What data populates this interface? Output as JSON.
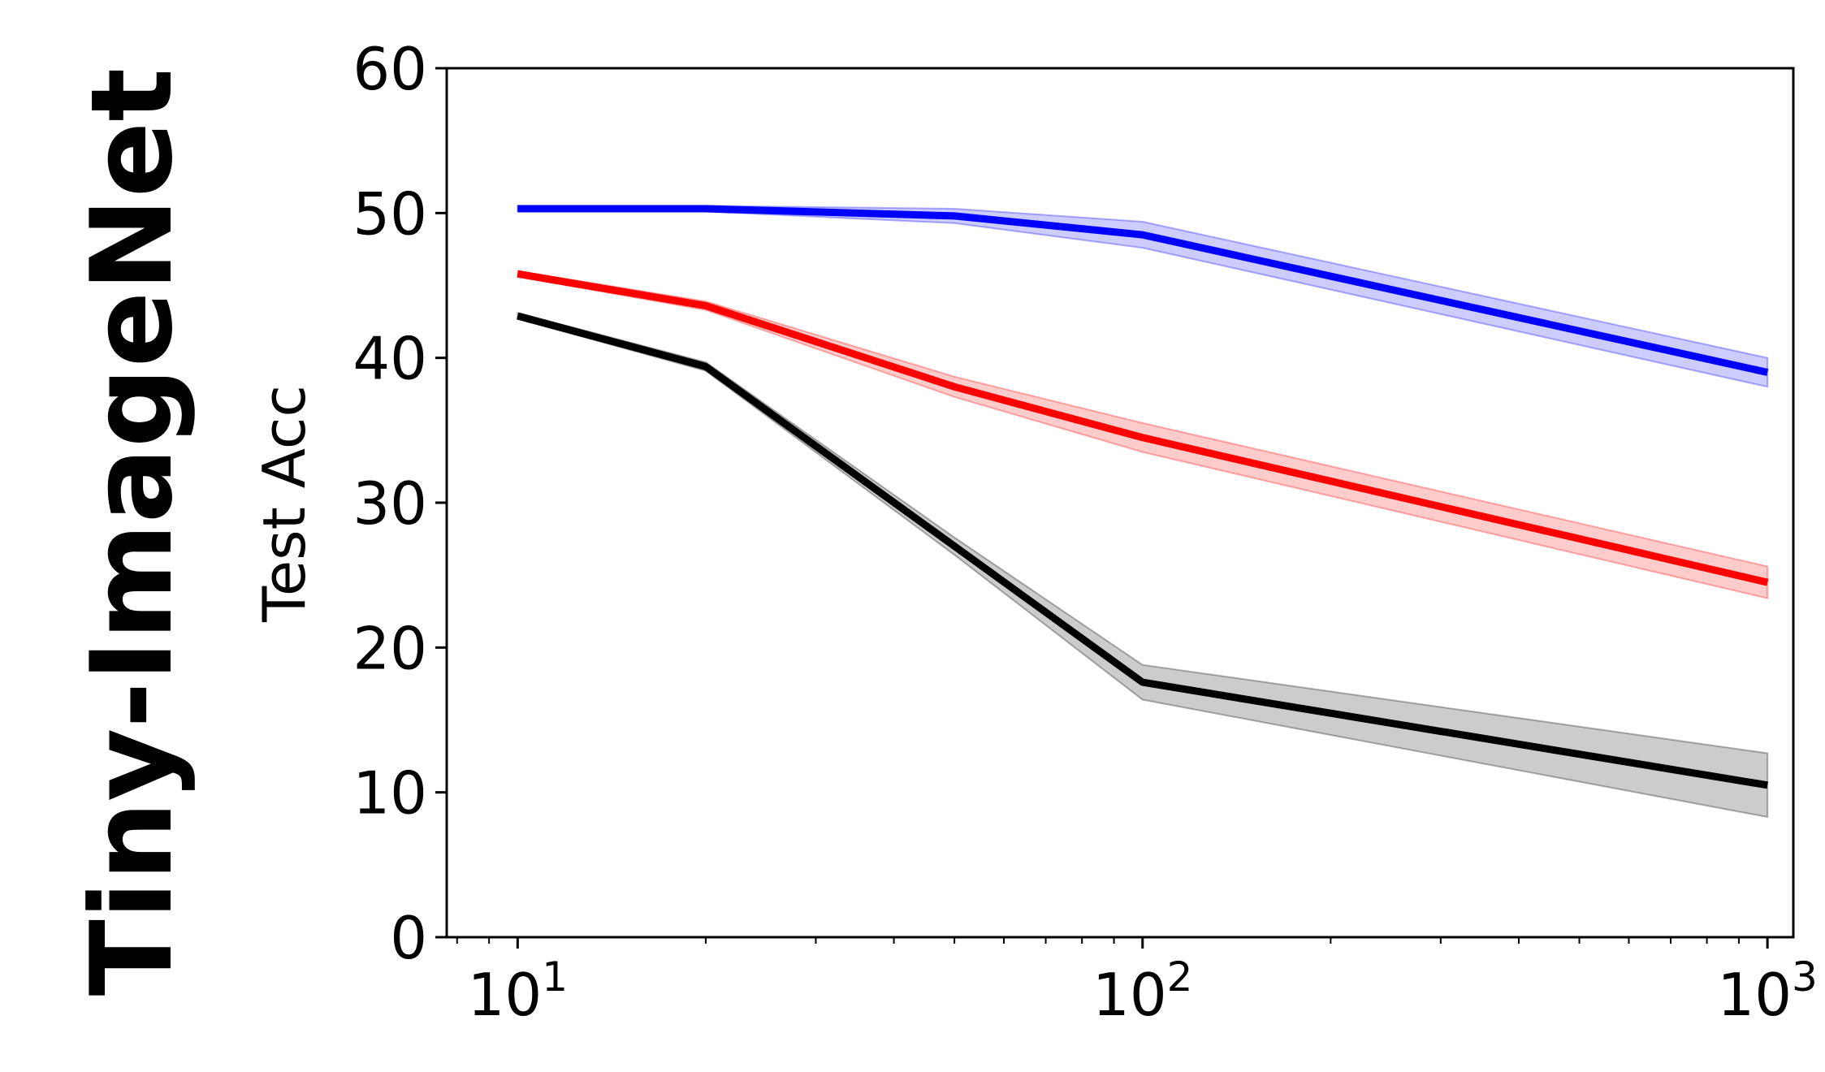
{
  "row_label": "Tiny-ImageNet",
  "chart_data": {
    "type": "line",
    "title": "",
    "xlabel": "",
    "ylabel": "Test Acc",
    "xscale": "log",
    "xlim": [
      7.7,
      1100
    ],
    "ylim": [
      0,
      60
    ],
    "yticks": [
      "0",
      "10",
      "20",
      "30",
      "40",
      "50",
      "60"
    ],
    "xticks": [
      {
        "value": 10,
        "base": "10",
        "exp": "1"
      },
      {
        "value": 100,
        "base": "10",
        "exp": "2"
      },
      {
        "value": 1000,
        "base": "10",
        "exp": "3"
      }
    ],
    "grid": false,
    "legend": "none",
    "x": [
      10,
      20,
      50,
      100,
      1000
    ],
    "series": [
      {
        "color": "#0000ff",
        "values": [
          50.3,
          50.3,
          49.8,
          48.5,
          39.0
        ],
        "lower": [
          50.1,
          50.1,
          49.3,
          47.6,
          38.0
        ],
        "upper": [
          50.5,
          50.5,
          50.3,
          49.4,
          40.0
        ]
      },
      {
        "color": "#ff0000",
        "values": [
          45.8,
          43.6,
          38.0,
          34.5,
          24.5
        ],
        "lower": [
          45.6,
          43.3,
          37.3,
          33.5,
          23.4
        ],
        "upper": [
          46.0,
          43.9,
          38.7,
          35.5,
          25.6
        ]
      },
      {
        "color": "#000000",
        "values": [
          42.9,
          39.4,
          27.0,
          17.6,
          10.5
        ],
        "lower": [
          42.7,
          39.1,
          26.4,
          16.4,
          8.3
        ],
        "upper": [
          43.1,
          39.7,
          27.6,
          18.8,
          12.7
        ]
      }
    ]
  }
}
